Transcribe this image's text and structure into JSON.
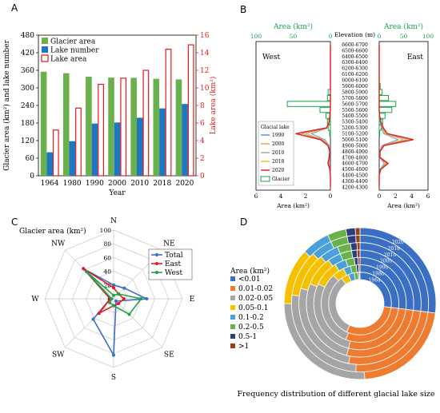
{
  "panel_labels": [
    "A",
    "B",
    "C",
    "D"
  ],
  "chart_data": [
    {
      "panel": "A",
      "type": "bar",
      "categories": [
        "1964",
        "1980",
        "1990",
        "2000",
        "2010",
        "2018",
        "2020"
      ],
      "xlabel": "Year",
      "ylabel": "Glacier area (km²) and lake number",
      "y2label": "Lake area (km²)",
      "ylim": [
        0,
        480
      ],
      "yticks": [
        "0",
        "60",
        "120",
        "180",
        "240",
        "300",
        "360",
        "420",
        "480"
      ],
      "y2lim": [
        0,
        16
      ],
      "y2ticks": [
        "0",
        "2",
        "4",
        "6",
        "8",
        "10",
        "12",
        "14",
        "16"
      ],
      "legend": [
        "Glacier area",
        "Lake number",
        "Lake area"
      ],
      "colors": {
        "glacier": "#6ab04c",
        "lake_number": "#1f77c4",
        "lake_area": "#e41a1c"
      },
      "series": [
        {
          "name": "Glacier area",
          "axis": "left",
          "values": [
            355,
            350,
            338,
            335,
            334,
            331,
            329
          ]
        },
        {
          "name": "Lake number",
          "axis": "left",
          "values": [
            80,
            118,
            178,
            182,
            198,
            230,
            245
          ]
        },
        {
          "name": "Lake area",
          "axis": "right",
          "values": [
            5.2,
            7.7,
            10.4,
            11.1,
            12.0,
            14.4,
            14.9
          ]
        }
      ]
    },
    {
      "panel": "B",
      "type": "profile",
      "top_axis_title": "Area (km²)",
      "top_left_ticks": [
        "100",
        "50",
        "0"
      ],
      "top_right_ticks": [
        "0",
        "50",
        "100"
      ],
      "elevation_title": "Elevation (m)",
      "bottom_left_ticks": [
        "6",
        "4",
        "2",
        "0"
      ],
      "bottom_right_ticks": [
        "0",
        "2",
        "4",
        "6"
      ],
      "bottom_axis_title": "Area (km²)",
      "west_label": "West",
      "east_label": "East",
      "legend_title": "Glacial lake",
      "legend": [
        "1990",
        "2000",
        "2010",
        "2018",
        "2020",
        "Glacier"
      ],
      "line_colors": [
        "#5b8fd0",
        "#f0a030",
        "#a0a0a0",
        "#f5c000",
        "#e41a1c",
        "#1aa34a"
      ],
      "elevation_bins": [
        "6600-6700",
        "6500-6600",
        "6400-6500",
        "6300-6400",
        "6200-6300",
        "6100-6200",
        "6000-6100",
        "5900-6000",
        "5800-5900",
        "5700-5800",
        "5600-5700",
        "5500-5600",
        "5400-5500",
        "5300-5400",
        "5200-5300",
        "5100-5200",
        "5000-5100",
        "4900-5000",
        "4800-4900",
        "4700-4800",
        "4600-4700",
        "4500-4600",
        "4400-4500",
        "4300-4400",
        "4200-4300"
      ],
      "west_glacier_area": [
        0,
        0,
        0,
        0,
        0,
        0,
        0,
        0,
        3,
        4,
        58,
        14,
        6,
        4,
        3,
        1,
        0,
        0,
        0,
        0,
        0,
        0,
        0,
        0,
        0
      ],
      "east_glacier_area": [
        0,
        0,
        0,
        0,
        0,
        0,
        0,
        2,
        6,
        19,
        34,
        26,
        12,
        7,
        4,
        1,
        0,
        0,
        0,
        0,
        0,
        0,
        0,
        0,
        0
      ],
      "west_lake_area_2020": [
        0,
        0,
        0,
        0,
        0,
        0,
        0,
        0,
        0,
        0,
        0,
        0,
        0.05,
        0.1,
        0.3,
        2.8,
        0.8,
        0.2,
        0.05,
        0.1,
        0.2,
        0.05,
        0,
        0,
        0
      ],
      "east_lake_area_2020": [
        0,
        0,
        0,
        0,
        0,
        0,
        0,
        0,
        0,
        0,
        0,
        0,
        0.05,
        0.2,
        0.5,
        1.0,
        4.2,
        0.6,
        0.1,
        0.1,
        1.1,
        0.2,
        0,
        0,
        0
      ]
    },
    {
      "panel": "C",
      "type": "radar",
      "title": "Glacier area (km²)",
      "axes": [
        "N",
        "NE",
        "E",
        "SE",
        "S",
        "SW",
        "W",
        "NW"
      ],
      "rlim": [
        0,
        100
      ],
      "rticks": [
        "0",
        "20",
        "40",
        "60",
        "80",
        "100"
      ],
      "legend": [
        "Total",
        "East",
        "West"
      ],
      "colors": {
        "Total": "#3a6fc4",
        "East": "#e41a1c",
        "West": "#1aa34a"
      },
      "series": [
        {
          "name": "Total",
          "values": [
            20,
            22,
            48,
            5,
            82,
            42,
            5,
            62
          ]
        },
        {
          "name": "East",
          "values": [
            16,
            10,
            15,
            10,
            10,
            30,
            5,
            62
          ]
        },
        {
          "name": "West",
          "values": [
            5,
            10,
            40,
            32,
            10,
            8,
            3,
            56
          ]
        }
      ]
    },
    {
      "panel": "D",
      "type": "donut",
      "caption": "Frequency distribution of different glacial lake size",
      "legend_title": "Area (km²)",
      "categories": [
        "<0.01",
        "0.01-0.02",
        "0.02-0.05",
        "0.05-0.1",
        "0.1-0.2",
        "0.2-0.5",
        "0.5-1",
        ">1"
      ],
      "colors": [
        "#3a6fc4",
        "#ee7b30",
        "#a5a5a5",
        "#f5c000",
        "#4aa0d8",
        "#6ab04c",
        "#2a3f7c",
        "#a03c1c"
      ],
      "rings": [
        "1964",
        "1980",
        "1990",
        "2000",
        "2010",
        "2018",
        "2020"
      ],
      "values": [
        [
          27,
          30,
          33,
          4,
          3,
          2,
          0.6,
          0.4
        ],
        [
          27,
          29,
          32,
          5,
          3,
          2.5,
          1,
          0.5
        ],
        [
          27,
          27,
          28,
          9,
          4,
          3,
          1.3,
          0.7
        ],
        [
          27,
          27,
          27,
          9,
          4,
          3.5,
          1.6,
          0.9
        ],
        [
          27,
          26,
          26,
          10,
          5,
          3.5,
          1.7,
          0.8
        ],
        [
          27,
          24,
          26,
          11,
          5,
          4,
          2,
          1
        ],
        [
          27,
          22,
          26,
          12,
          6,
          4,
          2,
          1
        ]
      ]
    }
  ]
}
